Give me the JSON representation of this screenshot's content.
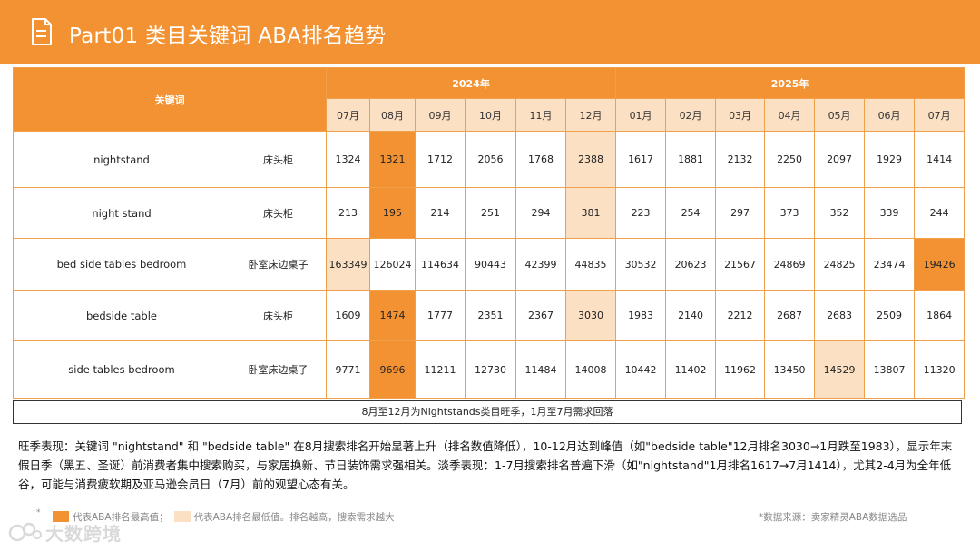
{
  "header": {
    "title": "Part01 类目关键词 ABA排名趋势"
  },
  "table": {
    "keyword_header": "关键词",
    "years": [
      {
        "label": "2024年",
        "span": 6
      },
      {
        "label": "2025年",
        "span": 7
      }
    ],
    "months": [
      "07月",
      "08月",
      "09月",
      "10月",
      "11月",
      "12月",
      "01月",
      "02月",
      "03月",
      "04月",
      "05月",
      "06月",
      "07月"
    ],
    "rows": [
      {
        "keyword": "nightstand",
        "category": "床头柜",
        "values": [
          "1324",
          "1321",
          "1712",
          "2056",
          "1768",
          "2388",
          "1617",
          "1881",
          "2132",
          "2250",
          "2097",
          "1929",
          "1414"
        ],
        "highlight": [
          "",
          "hi",
          "",
          "",
          "",
          "lo",
          "",
          "",
          "",
          "",
          "",
          "",
          ""
        ]
      },
      {
        "keyword": "night stand",
        "category": "床头柜",
        "values": [
          "213",
          "195",
          "214",
          "251",
          "294",
          "381",
          "223",
          "254",
          "297",
          "373",
          "352",
          "339",
          "244"
        ],
        "highlight": [
          "",
          "hi",
          "",
          "",
          "",
          "lo",
          "",
          "",
          "",
          "",
          "",
          "",
          ""
        ]
      },
      {
        "keyword": "bed side tables bedroom",
        "category": "卧室床边桌子",
        "values": [
          "163349",
          "126024",
          "114634",
          "90443",
          "42399",
          "44835",
          "30532",
          "20623",
          "21567",
          "24869",
          "24825",
          "23474",
          "19426"
        ],
        "highlight": [
          "lo",
          "",
          "",
          "",
          "",
          "",
          "",
          "",
          "",
          "",
          "",
          "",
          "hi"
        ]
      },
      {
        "keyword": "bedside table",
        "category": "床头柜",
        "values": [
          "1609",
          "1474",
          "1777",
          "2351",
          "2367",
          "3030",
          "1983",
          "2140",
          "2212",
          "2687",
          "2683",
          "2509",
          "1864"
        ],
        "highlight": [
          "",
          "hi",
          "",
          "",
          "",
          "lo",
          "",
          "",
          "",
          "",
          "",
          "",
          ""
        ]
      },
      {
        "keyword": "side tables bedroom",
        "category": "卧室床边桌子",
        "values": [
          "9771",
          "9696",
          "11211",
          "12730",
          "11484",
          "14008",
          "10442",
          "11402",
          "11962",
          "13450",
          "14529",
          "13807",
          "11320"
        ],
        "highlight": [
          "",
          "hi",
          "",
          "",
          "",
          "",
          "",
          "",
          "",
          "",
          "lo",
          "",
          ""
        ]
      }
    ],
    "note": "8月至12月为Nightstands类目旺季，1月至7月需求回落"
  },
  "analysis": {
    "text": "旺季表现：关键词 \"nightstand\" 和 \"bedside table\" 在8月搜索排名开始显著上升（排名数值降低），10-12月达到峰值（如\"bedside table\"12月排名3030→1月跌至1983），显示年末假日季（黑五、圣诞）前消费者集中搜索购买，与家居换新、节日装饰需求强相关。淡季表现：1-7月搜索排名普遍下滑（如\"nightstand\"1月排名1617→7月1414），尤其2-4月为全年低谷，可能与消费疲软期及亚马逊会员日（7月）前的观望心态有关。"
  },
  "legend": {
    "bullet": "*",
    "high_label": "代表ABA排名最高值；",
    "low_label": "代表ABA排名最低值。排名越高，搜索需求越大",
    "high_color": "#F39232",
    "low_color": "#FCE0C4"
  },
  "source": "*数据来源：卖家精灵ABA数据选品",
  "watermark": {
    "text": "大数跨境"
  },
  "colors": {
    "accent": "#F39232",
    "light": "#FCE0C4",
    "border": "#F0A04A"
  }
}
